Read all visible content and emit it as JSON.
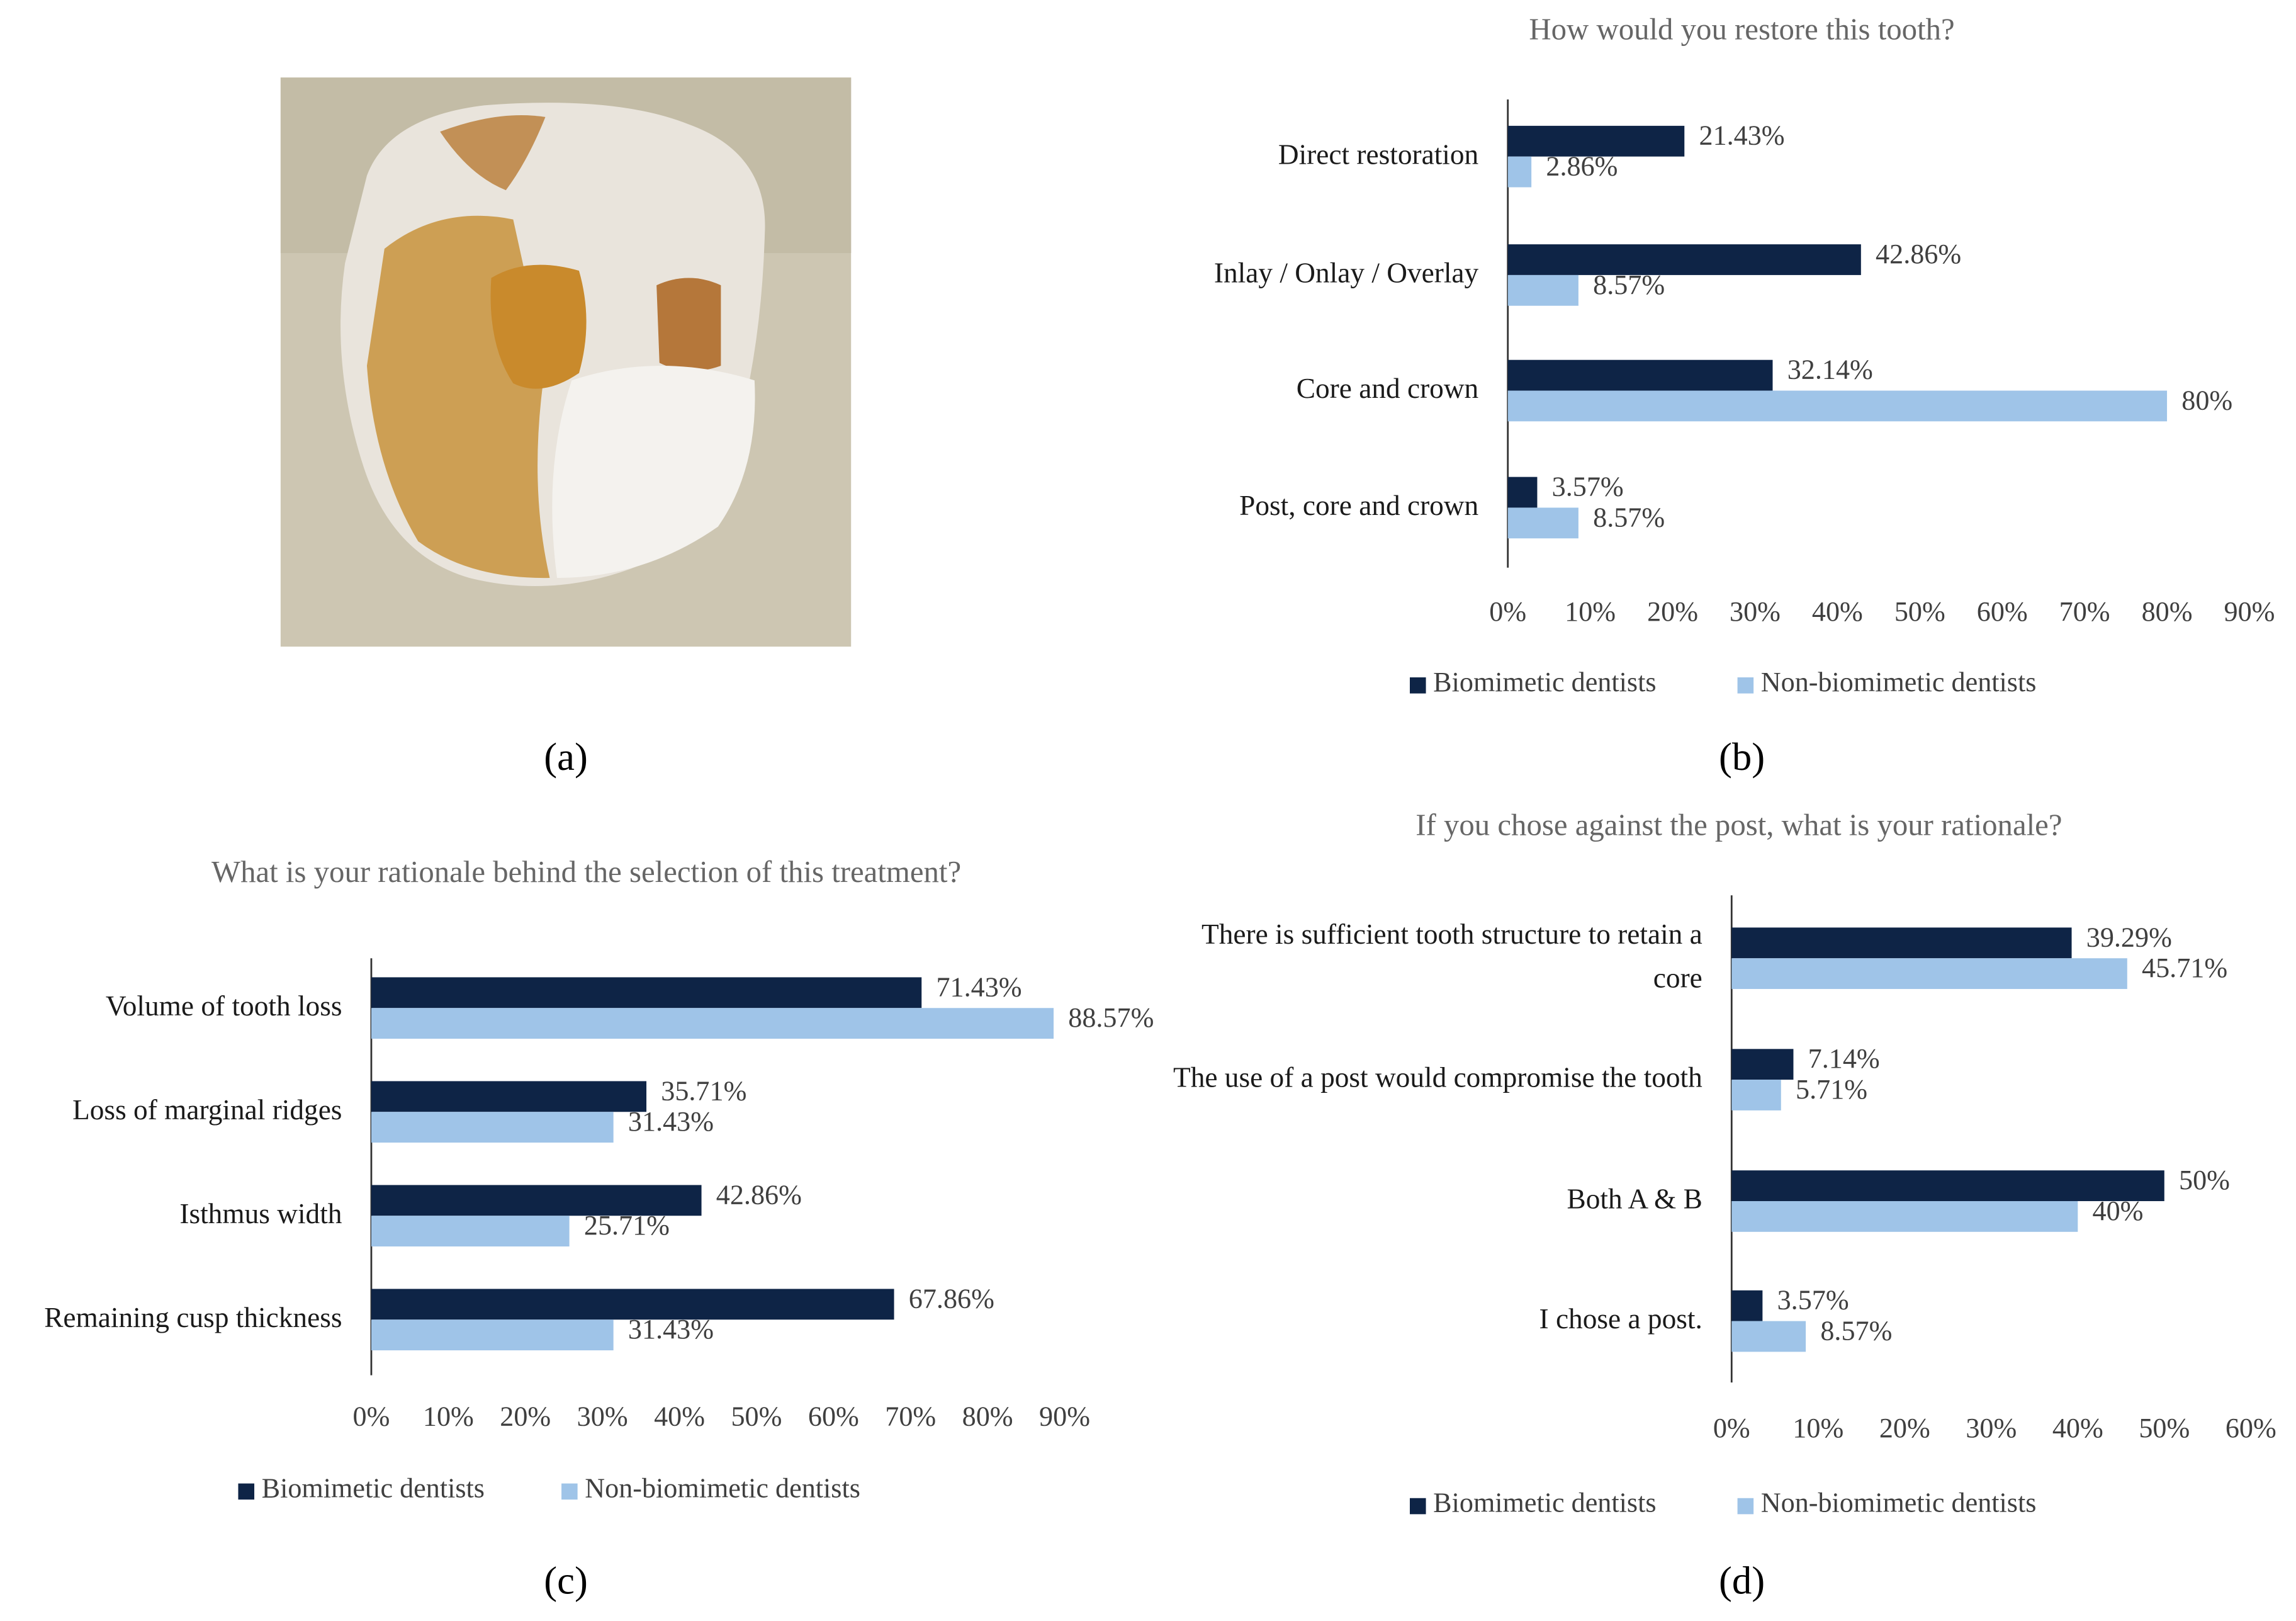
{
  "panel_labels": [
    "(a)",
    "(b)",
    "(c)",
    "(d)"
  ],
  "chart_data": [
    {
      "type": "bar",
      "orientation": "horizontal",
      "title": "How would you restore this tooth?",
      "categories": [
        "Direct restoration",
        "Inlay / Onlay / Overlay",
        "Core and crown",
        "Post, core and crown"
      ],
      "series": [
        {
          "name": "Biomimetic dentists",
          "color": "#0e2446",
          "values": [
            21.43,
            42.86,
            32.14,
            3.57
          ],
          "value_labels": [
            "21.43%",
            "42.86%",
            "32.14%",
            "3.57%"
          ]
        },
        {
          "name": "Non-biomimetic dentists",
          "color": "#9fc4e8",
          "values": [
            2.86,
            8.57,
            80,
            8.57
          ],
          "value_labels": [
            "2.86%",
            "8.57%",
            "80%",
            "8.57%"
          ]
        }
      ],
      "xlim": [
        0,
        90
      ],
      "xticks": [
        {
          "value": 0,
          "label": "0%"
        },
        {
          "value": 10,
          "label": "10%"
        },
        {
          "value": 20,
          "label": "20%"
        },
        {
          "value": 30,
          "label": "30%"
        },
        {
          "value": 40,
          "label": "40%"
        },
        {
          "value": 50,
          "label": "50%"
        },
        {
          "value": 60,
          "label": "60%"
        },
        {
          "value": 70,
          "label": "70%"
        },
        {
          "value": 80,
          "label": "80%"
        },
        {
          "value": 90,
          "label": "90%"
        }
      ],
      "legend": "bottom"
    },
    {
      "type": "bar",
      "orientation": "horizontal",
      "title": "What is your rationale behind the selection of this treatment?",
      "categories": [
        "Volume of tooth loss",
        "Loss of marginal ridges",
        "Isthmus width",
        "Remaining cusp thickness"
      ],
      "series": [
        {
          "name": "Biomimetic dentists",
          "color": "#0e2446",
          "values": [
            71.43,
            35.71,
            42.86,
            67.86
          ],
          "value_labels": [
            "71.43%",
            "35.71%",
            "42.86%",
            "67.86%"
          ]
        },
        {
          "name": "Non-biomimetic dentists",
          "color": "#9fc4e8",
          "values": [
            88.57,
            31.43,
            25.71,
            31.43
          ],
          "value_labels": [
            "88.57%",
            "31.43%",
            "25.71%",
            "31.43%"
          ]
        }
      ],
      "xlim": [
        0,
        90
      ],
      "xticks": [
        {
          "value": 0,
          "label": "0%"
        },
        {
          "value": 10,
          "label": "10%"
        },
        {
          "value": 20,
          "label": "20%"
        },
        {
          "value": 30,
          "label": "30%"
        },
        {
          "value": 40,
          "label": "40%"
        },
        {
          "value": 50,
          "label": "50%"
        },
        {
          "value": 60,
          "label": "60%"
        },
        {
          "value": 70,
          "label": "70%"
        },
        {
          "value": 80,
          "label": "80%"
        },
        {
          "value": 90,
          "label": "90%"
        }
      ],
      "legend": "bottom"
    },
    {
      "type": "bar",
      "orientation": "horizontal",
      "title": "If you chose against the post, what is your rationale?",
      "categories": [
        "There is sufficient tooth structure to retain a core",
        "The use of a post would compromise the tooth",
        "Both A & B",
        "I chose a post."
      ],
      "series": [
        {
          "name": "Biomimetic dentists",
          "color": "#0e2446",
          "values": [
            39.29,
            7.14,
            50,
            3.57
          ],
          "value_labels": [
            "39.29%",
            "7.14%",
            "50%",
            "3.57%"
          ]
        },
        {
          "name": "Non-biomimetic dentists",
          "color": "#9fc4e8",
          "values": [
            45.71,
            5.71,
            40,
            8.57
          ],
          "value_labels": [
            "45.71%",
            "5.71%",
            "40%",
            "8.57%"
          ]
        }
      ],
      "xlim": [
        0,
        60
      ],
      "xticks": [
        {
          "value": 0,
          "label": "0%"
        },
        {
          "value": 10,
          "label": "10%"
        },
        {
          "value": 20,
          "label": "20%"
        },
        {
          "value": 30,
          "label": "30%"
        },
        {
          "value": 40,
          "label": "40%"
        },
        {
          "value": 50,
          "label": "50%"
        },
        {
          "value": 60,
          "label": "60%"
        }
      ],
      "legend": "bottom"
    }
  ]
}
